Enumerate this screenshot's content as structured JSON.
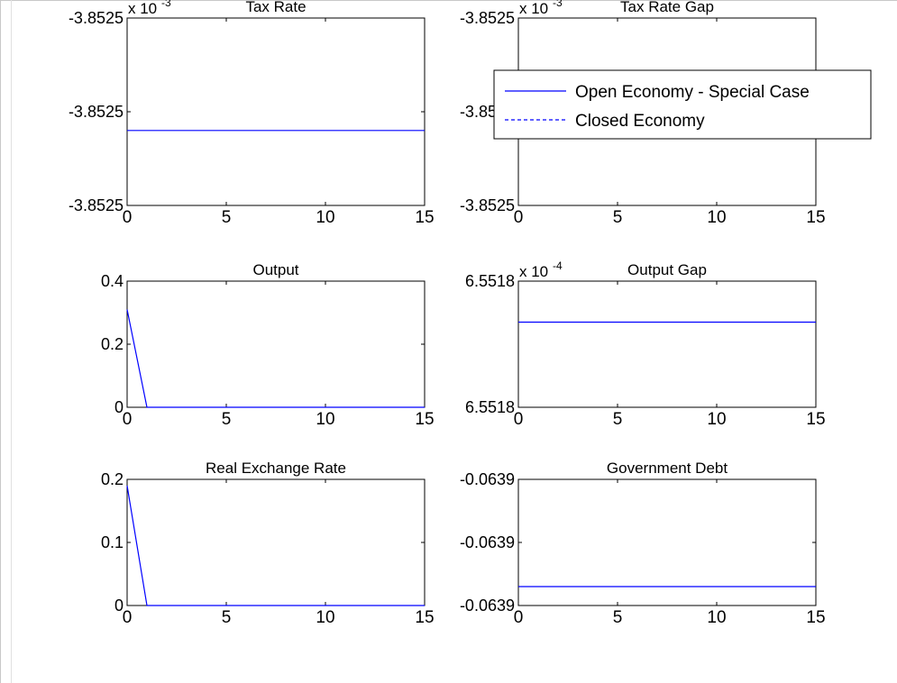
{
  "colors": {
    "series": "#0000ff",
    "axis": "#000000",
    "background": "#ffffff"
  },
  "legend": {
    "placement": "top-right",
    "entries": [
      {
        "label": "Open Economy - Special Case",
        "style": "solid"
      },
      {
        "label": "Closed Economy",
        "style": "dashed"
      }
    ]
  },
  "chart_data": [
    {
      "type": "line",
      "title": "Tax Rate",
      "exponent": {
        "base": "x 10",
        "power": "-3"
      },
      "xlim": [
        0,
        15
      ],
      "ylim": [
        -3.85251,
        -3.85249
      ],
      "xticks": [
        0,
        5,
        10,
        15
      ],
      "yticks": [
        -3.85251,
        -3.8525,
        -3.85249
      ],
      "yticklabels": [
        "-3.8525",
        "-3.8525",
        "-3.8525"
      ],
      "series": [
        {
          "x": [
            0,
            15
          ],
          "y": [
            -3.852502,
            -3.852502
          ]
        }
      ]
    },
    {
      "type": "line",
      "title": "Tax Rate Gap",
      "exponent": {
        "base": "x 10",
        "power": "-3"
      },
      "xlim": [
        0,
        15
      ],
      "ylim": [
        -3.85251,
        -3.85249
      ],
      "xticks": [
        0,
        5,
        10,
        15
      ],
      "yticks": [
        -3.85251,
        -3.8525,
        -3.85249
      ],
      "yticklabels": [
        "-3.8525",
        "-3.8525",
        "-3.8525"
      ],
      "series": [
        {
          "x": [
            0,
            15
          ],
          "y": [
            -3.852502,
            -3.852502
          ]
        }
      ]
    },
    {
      "type": "line",
      "title": "Output",
      "xlim": [
        0,
        15
      ],
      "ylim": [
        0,
        0.4
      ],
      "xticks": [
        0,
        5,
        10,
        15
      ],
      "yticks": [
        0,
        0.2,
        0.4
      ],
      "yticklabels": [
        "0",
        "0.2",
        "0.4"
      ],
      "series": [
        {
          "x": [
            0,
            1,
            2,
            3,
            4,
            5,
            6,
            7,
            8,
            9,
            10,
            11,
            12,
            13,
            14,
            15
          ],
          "y": [
            0.31,
            0,
            0,
            0,
            0,
            0,
            0,
            0,
            0,
            0,
            0,
            0,
            0,
            0,
            0,
            0
          ]
        }
      ]
    },
    {
      "type": "line",
      "title": "Output Gap",
      "exponent": {
        "base": "x 10",
        "power": "-4"
      },
      "xlim": [
        0,
        15
      ],
      "ylim": [
        6.55178,
        6.55182
      ],
      "xticks": [
        0,
        5,
        10,
        15
      ],
      "yticks": [
        6.55178,
        6.55182
      ],
      "yticklabels": [
        "6.5518",
        "6.5518"
      ],
      "series": [
        {
          "x": [
            0,
            15
          ],
          "y": [
            6.551807,
            6.551807
          ]
        }
      ]
    },
    {
      "type": "line",
      "title": "Real Exchange Rate",
      "xlim": [
        0,
        15
      ],
      "ylim": [
        0,
        0.2
      ],
      "xticks": [
        0,
        5,
        10,
        15
      ],
      "yticks": [
        0,
        0.1,
        0.2
      ],
      "yticklabels": [
        "0",
        "0.1",
        "0.2"
      ],
      "series": [
        {
          "x": [
            0,
            1,
            2,
            3,
            4,
            5,
            6,
            7,
            8,
            9,
            10,
            11,
            12,
            13,
            14,
            15
          ],
          "y": [
            0.19,
            0,
            0,
            0,
            0,
            0,
            0,
            0,
            0,
            0,
            0,
            0,
            0,
            0,
            0,
            0
          ]
        }
      ]
    },
    {
      "type": "line",
      "title": "Government Debt",
      "xlim": [
        0,
        15
      ],
      "ylim": [
        -0.06391,
        -0.06389
      ],
      "xticks": [
        0,
        5,
        10,
        15
      ],
      "yticks": [
        -0.06391,
        -0.0639,
        -0.06389
      ],
      "yticklabels": [
        "-0.0639",
        "-0.0639",
        "-0.0639"
      ],
      "series": [
        {
          "x": [
            0,
            15
          ],
          "y": [
            -0.063907,
            -0.063907
          ]
        }
      ]
    }
  ]
}
